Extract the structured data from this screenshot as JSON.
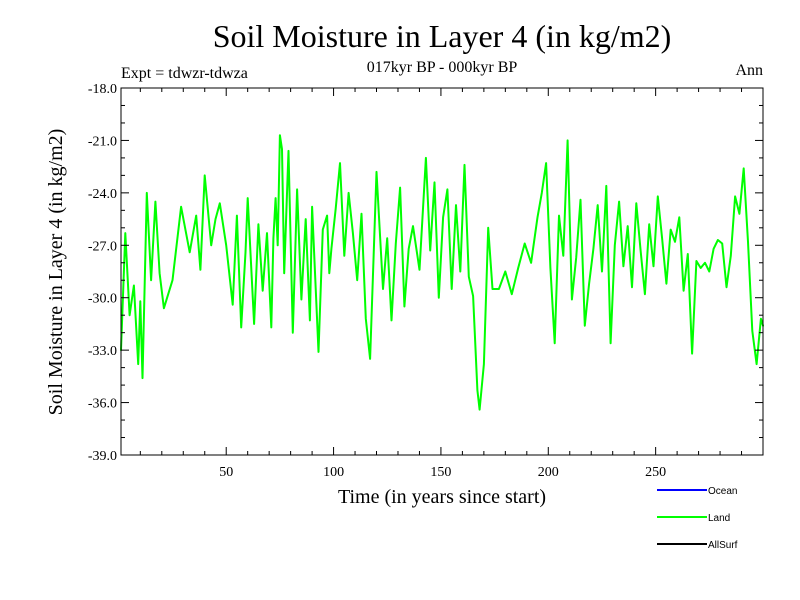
{
  "chart_data": {
    "type": "line",
    "title": "Soil Moisture in Layer 4 (in kg/m2)",
    "subtitle": "017kyr BP - 000kyr BP",
    "left_label": "Expt = tdwzr-tdwza",
    "right_label": "Ann",
    "xlabel": "Time (in years since start)",
    "ylabel": "Soil Moisture in Layer 4 (in kg/m2)",
    "xlim": [
      1,
      300
    ],
    "ylim": [
      -39.0,
      -18.0
    ],
    "xticks": [
      50,
      100,
      150,
      200,
      250
    ],
    "xtick_labels": [
      "50",
      "100",
      "150",
      "200",
      "250"
    ],
    "yticks": [
      -39.0,
      -36.0,
      -33.0,
      -30.0,
      -27.0,
      -24.0,
      -21.0,
      -18.0
    ],
    "ytick_labels": [
      "-39.0",
      "-36.0",
      "-33.0",
      "-30.0",
      "-27.0",
      "-24.0",
      "-21.0",
      "-18.0"
    ],
    "grid": false,
    "legend_position": "bottom-right",
    "legend": [
      {
        "name": "Ocean",
        "color": "#0000ff"
      },
      {
        "name": "Land",
        "color": "#00ff00"
      },
      {
        "name": "AllSurf",
        "color": "#000000"
      }
    ],
    "series": [
      {
        "name": "Land",
        "color": "#00ff00",
        "x": [
          1,
          3,
          5,
          7,
          9,
          10,
          11,
          13,
          15,
          17,
          19,
          21,
          25,
          29,
          33,
          36,
          38,
          40,
          43,
          45,
          47,
          50,
          53,
          55,
          57,
          59,
          60,
          63,
          65,
          67,
          69,
          71,
          72,
          73,
          74,
          75,
          76,
          77,
          79,
          81,
          83,
          85,
          87,
          89,
          90,
          93,
          95,
          97,
          98,
          99,
          101,
          103,
          105,
          107,
          109,
          111,
          113,
          115,
          117,
          120,
          123,
          125,
          127,
          129,
          131,
          133,
          135,
          137,
          140,
          143,
          145,
          147,
          149,
          151,
          153,
          155,
          157,
          159,
          161,
          163,
          165,
          167,
          168,
          170,
          172,
          174,
          177,
          180,
          183,
          186,
          189,
          192,
          195,
          197,
          199,
          201,
          203,
          205,
          207,
          209,
          211,
          213,
          215,
          217,
          219,
          221,
          223,
          225,
          227,
          229,
          231,
          233,
          235,
          237,
          239,
          241,
          243,
          245,
          247,
          249,
          251,
          253,
          255,
          257,
          259,
          261,
          263,
          265,
          267,
          269,
          271,
          273,
          275,
          277,
          279,
          281,
          283,
          285,
          287,
          289,
          291,
          293,
          295,
          297,
          299,
          300
        ],
        "values": [
          -33.0,
          -26.3,
          -31.0,
          -29.3,
          -33.8,
          -30.2,
          -34.6,
          -24.0,
          -29.0,
          -24.5,
          -28.6,
          -30.6,
          -29.0,
          -24.8,
          -27.4,
          -25.3,
          -28.4,
          -23.0,
          -27.0,
          -25.5,
          -24.6,
          -27.0,
          -30.4,
          -25.3,
          -31.7,
          -27.4,
          -24.3,
          -31.5,
          -25.8,
          -29.6,
          -26.3,
          -31.7,
          -26.6,
          -24.3,
          -27.0,
          -20.7,
          -21.5,
          -28.6,
          -21.6,
          -32.0,
          -23.8,
          -30.1,
          -25.5,
          -31.3,
          -24.8,
          -33.1,
          -26.1,
          -25.3,
          -28.6,
          -27.2,
          -24.9,
          -22.3,
          -27.6,
          -24.0,
          -26.3,
          -29.0,
          -25.2,
          -31.2,
          -33.5,
          -22.8,
          -29.5,
          -26.6,
          -31.3,
          -26.9,
          -23.7,
          -30.5,
          -27.2,
          -25.9,
          -28.4,
          -22.0,
          -27.3,
          -23.4,
          -30.0,
          -25.4,
          -23.8,
          -29.5,
          -24.7,
          -28.5,
          -22.4,
          -28.8,
          -29.9,
          -35.3,
          -36.4,
          -33.8,
          -26.0,
          -29.5,
          -29.5,
          -28.5,
          -29.8,
          -28.3,
          -26.9,
          -28.0,
          -25.4,
          -24.0,
          -22.3,
          -28.3,
          -32.6,
          -25.3,
          -27.6,
          -21.0,
          -30.1,
          -27.7,
          -24.4,
          -31.6,
          -29.2,
          -27.2,
          -24.7,
          -28.5,
          -23.6,
          -32.6,
          -27.0,
          -24.5,
          -28.2,
          -25.9,
          -29.4,
          -24.6,
          -27.3,
          -29.8,
          -25.8,
          -28.2,
          -24.2,
          -26.6,
          -29.2,
          -26.1,
          -26.8,
          -25.4,
          -29.6,
          -27.5,
          -33.2,
          -27.9,
          -28.3,
          -28.0,
          -28.5,
          -27.2,
          -26.7,
          -26.9,
          -29.4,
          -27.6,
          -24.2,
          -25.2,
          -22.6,
          -26.8,
          -31.9,
          -33.8,
          -31.2,
          -31.6
        ]
      }
    ]
  }
}
